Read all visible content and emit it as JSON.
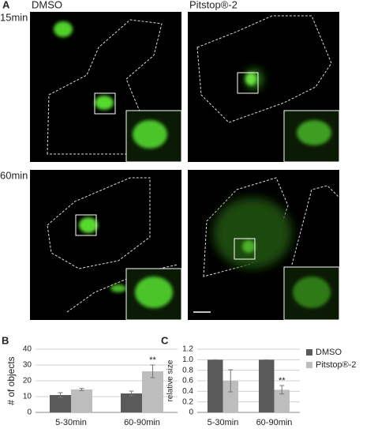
{
  "figure_a": {
    "label": "A",
    "columns": [
      "DMSO",
      "Pitstop®-2"
    ],
    "rows": [
      "15min",
      "60min"
    ]
  },
  "chart_data": [
    {
      "type": "bar",
      "label": "B",
      "ylabel": "# of objects",
      "categories": [
        "5-30min",
        "60-90min"
      ],
      "series": [
        {
          "color": "#5a5a5a",
          "values": [
            11,
            12
          ],
          "errors": [
            1.5,
            1.5
          ]
        },
        {
          "color": "#bdbdbd",
          "values": [
            14.5,
            26
          ],
          "errors": [
            0.7,
            4
          ]
        }
      ],
      "ylim": [
        0,
        40
      ],
      "yticks": [
        0,
        10,
        20,
        30,
        40
      ],
      "grid": true,
      "annotation": "**"
    },
    {
      "type": "bar",
      "label": "C",
      "ylabel": "relative size",
      "categories": [
        "5-30min",
        "60-90min"
      ],
      "series": [
        {
          "name": "DMSO",
          "color": "#5a5a5a",
          "values": [
            1,
            1
          ],
          "errors": [
            0,
            0
          ]
        },
        {
          "name": "Pitstop®-2",
          "color": "#bdbdbd",
          "values": [
            0.6,
            0.43
          ],
          "errors": [
            0.21,
            0.08
          ]
        }
      ],
      "ylim": [
        0,
        1.2
      ],
      "yticks": [
        0,
        0.2,
        0.4,
        0.6,
        0.8,
        {
          "value": 1,
          "label": "1.0"
        },
        1.2
      ],
      "grid": true,
      "annotation": "**",
      "legend": "right"
    }
  ]
}
